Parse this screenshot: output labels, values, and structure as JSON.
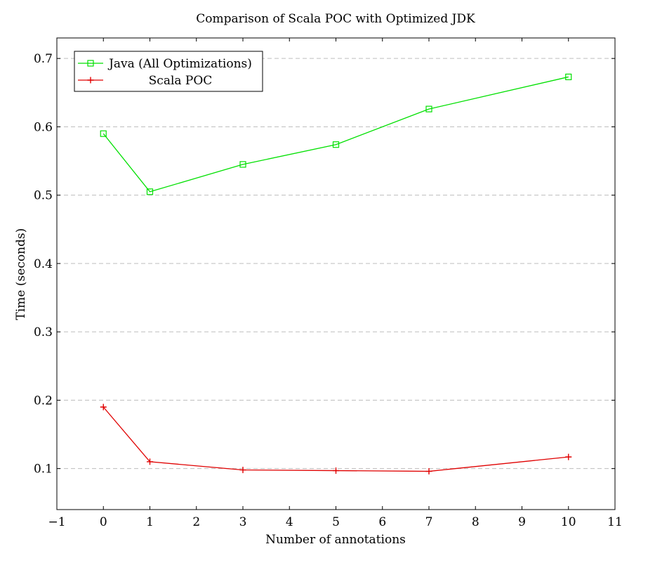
{
  "chart_data": {
    "type": "line",
    "title": "Comparison of Scala POC with Optimized JDK",
    "xlabel": "Number of annotations",
    "ylabel": "Time (seconds)",
    "xlim": [
      -1,
      11
    ],
    "ylim": [
      0.04,
      0.73
    ],
    "xticks": [
      -1,
      0,
      1,
      2,
      3,
      4,
      5,
      6,
      7,
      8,
      9,
      10,
      11
    ],
    "xtick_labels": [
      "−1",
      "0",
      "1",
      "2",
      "3",
      "4",
      "5",
      "6",
      "7",
      "8",
      "9",
      "10",
      "11"
    ],
    "yticks": [
      0.1,
      0.2,
      0.3,
      0.4,
      0.5,
      0.6,
      0.7
    ],
    "ytick_labels": [
      "0.1",
      "0.2",
      "0.3",
      "0.4",
      "0.5",
      "0.6",
      "0.7"
    ],
    "grid": "horizontal dashed",
    "legend_position": "top-left",
    "series": [
      {
        "name": "Java (All Optimizations)",
        "color": "#00e000",
        "marker": "square",
        "x": [
          0,
          1,
          3,
          5,
          7,
          10
        ],
        "y": [
          0.59,
          0.505,
          0.545,
          0.574,
          0.626,
          0.673
        ]
      },
      {
        "name": "Scala POC",
        "color": "#e00000",
        "marker": "plus",
        "x": [
          0,
          1,
          3,
          5,
          7,
          10
        ],
        "y": [
          0.19,
          0.11,
          0.098,
          0.097,
          0.096,
          0.117
        ]
      }
    ]
  }
}
